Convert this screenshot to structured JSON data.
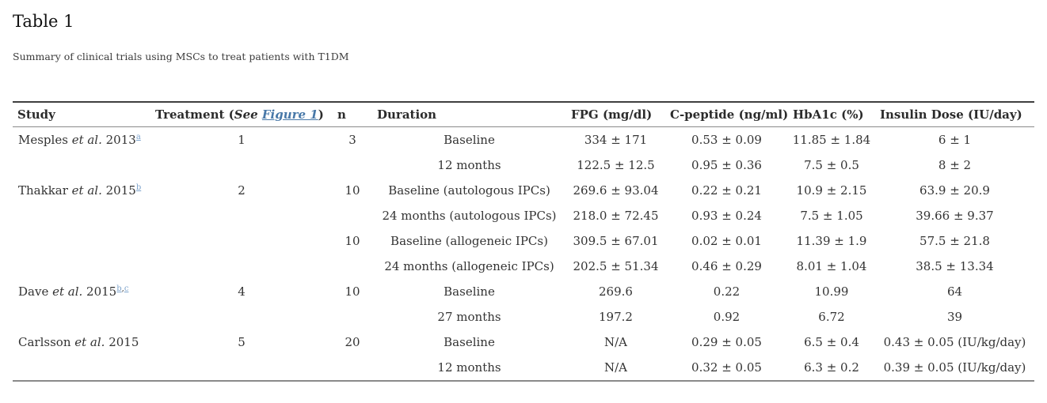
{
  "colors": {
    "link": "#4878a8",
    "footnote_link": "#7da3cc",
    "text": "#333333",
    "border_dark": "#3f3f3f",
    "border_light": "#8a8a8a"
  },
  "page": {
    "title": "Table 1",
    "subtitle": "Summary of clinical trials using MSCs to treat patients with T1DM"
  },
  "strings": {
    "et_al": "et al."
  },
  "table": {
    "header": {
      "study": "Study",
      "treatment_prefix": "Treatment (",
      "treatment_see": "See",
      "treatment_link": "Figure 1",
      "treatment_suffix": ")",
      "n": "n",
      "duration": "Duration",
      "fpg": "FPG (mg/dl)",
      "c_peptide": "C-peptide (ng/ml)",
      "hba1c": "HbA1c (%)",
      "insulin": "Insulin Dose (IU/day)"
    },
    "rows": [
      {
        "study": {
          "name": "Mesples",
          "year": "2013",
          "footnotes": [
            "a"
          ]
        },
        "treatment": "1",
        "n": "3",
        "duration": "Baseline",
        "fpg": "334 ± 171",
        "c_peptide": "0.53 ± 0.09",
        "hba1c": "11.85 ± 1.84",
        "insulin": "6 ± 1"
      },
      {
        "study": null,
        "treatment": "",
        "n": "",
        "duration": "12 months",
        "fpg": "122.5 ± 12.5",
        "c_peptide": "0.95 ± 0.36",
        "hba1c": "7.5 ± 0.5",
        "insulin": "8 ± 2"
      },
      {
        "study": {
          "name": "Thakkar",
          "year": "2015",
          "footnotes": [
            "b"
          ]
        },
        "treatment": "2",
        "n": "10",
        "duration": "Baseline (autologous IPCs)",
        "fpg": "269.6 ± 93.04",
        "c_peptide": "0.22 ± 0.21",
        "hba1c": "10.9 ± 2.15",
        "insulin": "63.9 ± 20.9"
      },
      {
        "study": null,
        "treatment": "",
        "n": "",
        "duration": "24 months (autologous IPCs)",
        "fpg": "218.0 ± 72.45",
        "c_peptide": "0.93 ± 0.24",
        "hba1c": "7.5 ± 1.05",
        "insulin": "39.66 ± 9.37"
      },
      {
        "study": null,
        "treatment": "",
        "n": "10",
        "duration": "Baseline (allogeneic IPCs)",
        "fpg": "309.5 ± 67.01",
        "c_peptide": "0.02 ± 0.01",
        "hba1c": "11.39 ± 1.9",
        "insulin": "57.5 ± 21.8"
      },
      {
        "study": null,
        "treatment": "",
        "n": "",
        "duration": "24 months (allogeneic IPCs)",
        "fpg": "202.5 ± 51.34",
        "c_peptide": "0.46 ± 0.29",
        "hba1c": "8.01 ± 1.04",
        "insulin": "38.5 ± 13.34"
      },
      {
        "study": {
          "name": "Dave",
          "year": "2015",
          "footnotes": [
            "b",
            "c"
          ]
        },
        "treatment": "4",
        "n": "10",
        "duration": "Baseline",
        "fpg": "269.6",
        "c_peptide": "0.22",
        "hba1c": "10.99",
        "insulin": "64"
      },
      {
        "study": null,
        "treatment": "",
        "n": "",
        "duration": "27 months",
        "fpg": "197.2",
        "c_peptide": "0.92",
        "hba1c": "6.72",
        "insulin": "39"
      },
      {
        "study": {
          "name": "Carlsson",
          "year": "2015",
          "footnotes": []
        },
        "treatment": "5",
        "n": "20",
        "duration": "Baseline",
        "fpg": "N/A",
        "c_peptide": "0.29 ± 0.05",
        "hba1c": "6.5 ± 0.4",
        "insulin": "0.43 ± 0.05 (IU/kg/day)"
      },
      {
        "study": null,
        "treatment": "",
        "n": "",
        "duration": "12 months",
        "fpg": "N/A",
        "c_peptide": "0.32 ± 0.05",
        "hba1c": "6.3 ± 0.2",
        "insulin": "0.39 ± 0.05 (IU/kg/day)"
      }
    ]
  }
}
